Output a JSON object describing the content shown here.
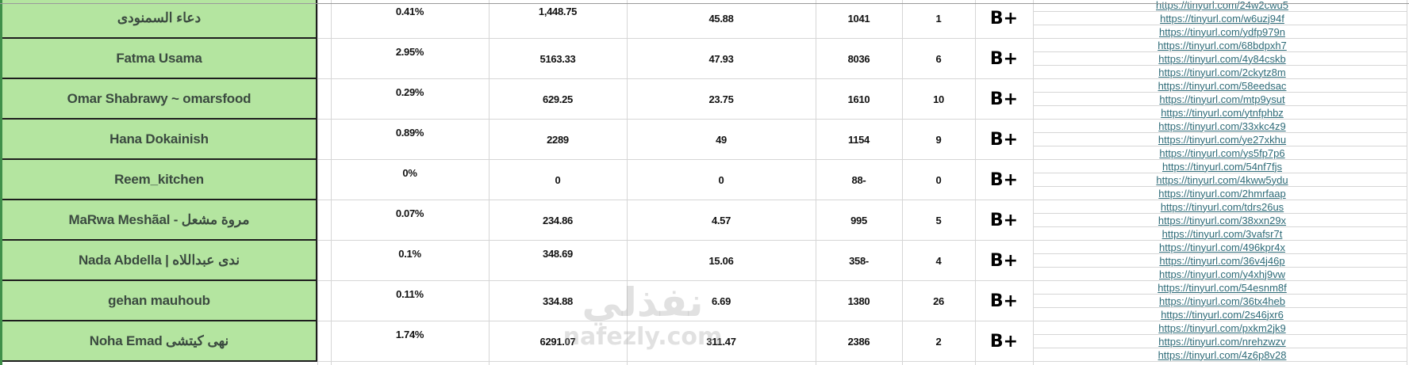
{
  "colors": {
    "name_column_bg": "#b4e5a0",
    "link": "#2e6b78",
    "grid": "#d6d6d6"
  },
  "rows": [
    {
      "name": "دعاء السمنودى",
      "pct": "0.41%",
      "v1": "1,448.75",
      "v2": "45.88",
      "v3": "1041",
      "v4": "1",
      "grade": "B+",
      "links": [
        "https://tinyurl.com/24w2cwu5",
        "https://tinyurl.com/w6uzj94f",
        "https://tinyurl.com/ydfp979n"
      ]
    },
    {
      "name": "Fatma Usama",
      "pct": "2.95%",
      "v1": "5163.33",
      "v2": "47.93",
      "v3": "8036",
      "v4": "6",
      "grade": "B+",
      "links": [
        "https://tinyurl.com/68bdpxh7",
        "https://tinyurl.com/4y84cskb",
        "https://tinyurl.com/2ckytz8m"
      ]
    },
    {
      "name": "Omar Shabrawy ~ omarsfood",
      "pct": "0.29%",
      "v1": "629.25",
      "v2": "23.75",
      "v3": "1610",
      "v4": "10",
      "grade": "B+",
      "links": [
        "https://tinyurl.com/58eedsac",
        "https://tinyurl.com/mtp9ysut",
        "https://tinyurl.com/ytnfphbz"
      ]
    },
    {
      "name": "Hana Dokainish",
      "pct": "0.89%",
      "v1": "2289",
      "v2": "49",
      "v3": "1154",
      "v4": "9",
      "grade": "B+",
      "links": [
        "https://tinyurl.com/33xkc4z9",
        "https://tinyurl.com/ye27xkhu",
        "https://tinyurl.com/ys5fp7p6"
      ]
    },
    {
      "name": "Reem_kitchen",
      "pct": "0%",
      "v1": "0",
      "v2": "0",
      "v3": "88-",
      "v4": "0",
      "grade": "B+",
      "links": [
        "https://tinyurl.com/54nf7fjs",
        "https://tinyurl.com/4kww5ydu",
        "https://tinyurl.com/2hmrfaap"
      ]
    },
    {
      "name": "MaRwa Meshãal - مروة مشعل",
      "pct": "0.07%",
      "v1": "234.86",
      "v2": "4.57",
      "v3": "995",
      "v4": "5",
      "grade": "B+",
      "links": [
        "https://tinyurl.com/tdrs26us",
        "https://tinyurl.com/38xxn29x",
        "https://tinyurl.com/3vafsr7t"
      ]
    },
    {
      "name": "Nada Abdella | ندى عبداللاه",
      "pct": "0.1%",
      "v1": "348.69",
      "v2": "15.06",
      "v3": "358-",
      "v4": "4",
      "grade": "B+",
      "links": [
        "https://tinyurl.com/496kpr4x",
        "https://tinyurl.com/36v4j46p",
        "https://tinyurl.com/y4xhj9vw"
      ]
    },
    {
      "name": "gehan mauhoub",
      "pct": "0.11%",
      "v1": "334.88",
      "v2": "6.69",
      "v3": "1380",
      "v4": "26",
      "grade": "B+",
      "links": [
        "https://tinyurl.com/54esnm8f",
        "https://tinyurl.com/36tx4heb",
        "https://tinyurl.com/2s46jxr6"
      ]
    },
    {
      "name": "Noha Emad نهى كيتشى",
      "pct": "1.74%",
      "v1": "6291.07",
      "v2": "311.47",
      "v3": "2386",
      "v4": "2",
      "grade": "B+",
      "links": [
        "https://tinyurl.com/pxkm2jk9",
        "https://tinyurl.com/nrehzwzv",
        "https://tinyurl.com/4z6p8v28"
      ]
    }
  ],
  "watermark": {
    "arabic": "نفذلي",
    "latin": "nafezly.com"
  }
}
